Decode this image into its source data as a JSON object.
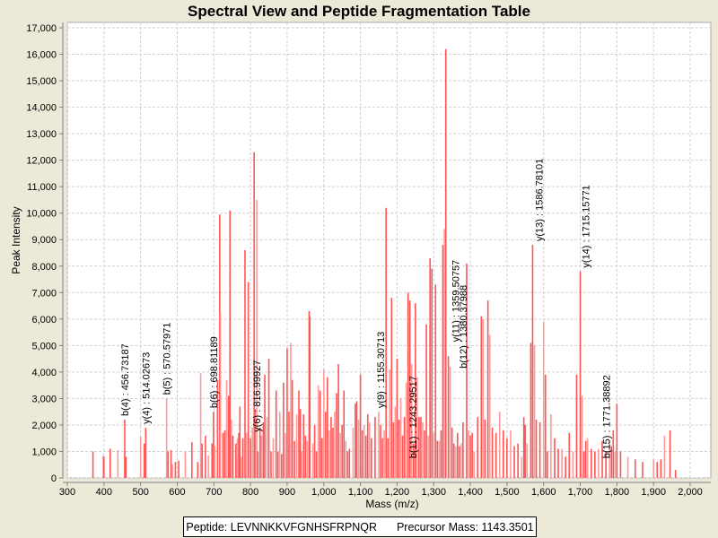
{
  "chart_data": {
    "type": "bar",
    "title": "Spectral View and Peptide Fragmentation Table",
    "xlabel": "Mass (m/z)",
    "ylabel": "Peak Intensity",
    "xlim": [
      290,
      2055
    ],
    "ylim": [
      0,
      17000
    ],
    "grid": true,
    "x_ticks": [
      "300",
      "400",
      "500",
      "600",
      "700",
      "800",
      "900",
      "1,000",
      "1,100",
      "1,200",
      "1,300",
      "1,400",
      "1,500",
      "1,600",
      "1,700",
      "1,800",
      "1,900",
      "2,000"
    ],
    "x_tick_values": [
      300,
      400,
      500,
      600,
      700,
      800,
      900,
      1000,
      1100,
      1200,
      1300,
      1400,
      1500,
      1600,
      1700,
      1800,
      1900,
      2000
    ],
    "y_ticks": [
      "0",
      "1,000",
      "2,000",
      "3,000",
      "4,000",
      "5,000",
      "6,000",
      "7,000",
      "8,000",
      "9,000",
      "10,000",
      "11,000",
      "12,000",
      "13,000",
      "14,000",
      "15,000",
      "16,000",
      "17,000"
    ],
    "y_tick_values": [
      0,
      1000,
      2000,
      3000,
      4000,
      5000,
      6000,
      7000,
      8000,
      9000,
      10000,
      11000,
      12000,
      13000,
      14000,
      15000,
      16000,
      17000
    ],
    "peak_color": "#ff5555",
    "peaks": [
      [
        370,
        1000
      ],
      [
        398,
        850
      ],
      [
        400,
        800
      ],
      [
        417,
        1100
      ],
      [
        438,
        1050
      ],
      [
        456.7,
        2200
      ],
      [
        460,
        800
      ],
      [
        500,
        1550
      ],
      [
        510,
        1300
      ],
      [
        514,
        1900
      ],
      [
        571,
        3000
      ],
      [
        575,
        1000
      ],
      [
        583,
        1050
      ],
      [
        587,
        500
      ],
      [
        595,
        600
      ],
      [
        604,
        650
      ],
      [
        622,
        1000
      ],
      [
        640,
        1350
      ],
      [
        656,
        600
      ],
      [
        664,
        3950
      ],
      [
        668,
        1300
      ],
      [
        677,
        1600
      ],
      [
        685,
        850
      ],
      [
        695,
        1300
      ],
      [
        699,
        2500
      ],
      [
        703,
        1200
      ],
      [
        710,
        3700
      ],
      [
        716,
        9950
      ],
      [
        718,
        6300
      ],
      [
        725,
        1700
      ],
      [
        730,
        1800
      ],
      [
        735,
        3700
      ],
      [
        740,
        3100
      ],
      [
        744,
        10100
      ],
      [
        748,
        2200
      ],
      [
        752,
        1600
      ],
      [
        760,
        1300
      ],
      [
        764,
        1500
      ],
      [
        768,
        1700
      ],
      [
        771,
        2700
      ],
      [
        775,
        800
      ],
      [
        779,
        1500
      ],
      [
        785,
        8600
      ],
      [
        789,
        1700
      ],
      [
        794,
        7400
      ],
      [
        800,
        1500
      ],
      [
        805,
        1900
      ],
      [
        810,
        12300
      ],
      [
        812,
        2600
      ],
      [
        817,
        10500
      ],
      [
        820,
        1000
      ],
      [
        826,
        1900
      ],
      [
        830,
        1600
      ],
      [
        835,
        2100
      ],
      [
        839,
        3900
      ],
      [
        845,
        2300
      ],
      [
        850,
        4500
      ],
      [
        856,
        1000
      ],
      [
        862,
        1500
      ],
      [
        870,
        3300
      ],
      [
        875,
        1000
      ],
      [
        880,
        2500
      ],
      [
        885,
        900
      ],
      [
        890,
        3600
      ],
      [
        895,
        1700
      ],
      [
        900,
        4900
      ],
      [
        905,
        2500
      ],
      [
        910,
        5100
      ],
      [
        914,
        3700
      ],
      [
        920,
        1400
      ],
      [
        926,
        2400
      ],
      [
        932,
        3300
      ],
      [
        936,
        2600
      ],
      [
        940,
        1000
      ],
      [
        945,
        2400
      ],
      [
        950,
        1600
      ],
      [
        955,
        1400
      ],
      [
        960,
        6300
      ],
      [
        962,
        6100
      ],
      [
        970,
        1300
      ],
      [
        975,
        2000
      ],
      [
        980,
        1000
      ],
      [
        985,
        3500
      ],
      [
        990,
        3300
      ],
      [
        995,
        1500
      ],
      [
        1000,
        4100
      ],
      [
        1005,
        2500
      ],
      [
        1010,
        3800
      ],
      [
        1015,
        1800
      ],
      [
        1020,
        2300
      ],
      [
        1025,
        1900
      ],
      [
        1030,
        2500
      ],
      [
        1035,
        3200
      ],
      [
        1040,
        4300
      ],
      [
        1045,
        1700
      ],
      [
        1050,
        2000
      ],
      [
        1055,
        3300
      ],
      [
        1060,
        1400
      ],
      [
        1065,
        1000
      ],
      [
        1070,
        1100
      ],
      [
        1080,
        1900
      ],
      [
        1086,
        2800
      ],
      [
        1090,
        2900
      ],
      [
        1095,
        2200
      ],
      [
        1100,
        3900
      ],
      [
        1105,
        1800
      ],
      [
        1110,
        2000
      ],
      [
        1115,
        1600
      ],
      [
        1120,
        2400
      ],
      [
        1125,
        2100
      ],
      [
        1130,
        1500
      ],
      [
        1140,
        2300
      ],
      [
        1150,
        2500
      ],
      [
        1155,
        2000
      ],
      [
        1160,
        1500
      ],
      [
        1165,
        1800
      ],
      [
        1170,
        10200
      ],
      [
        1175,
        1500
      ],
      [
        1180,
        4100
      ],
      [
        1185,
        6800
      ],
      [
        1190,
        2100
      ],
      [
        1195,
        2700
      ],
      [
        1200,
        4500
      ],
      [
        1205,
        2200
      ],
      [
        1210,
        3000
      ],
      [
        1215,
        1600
      ],
      [
        1220,
        2300
      ],
      [
        1225,
        3600
      ],
      [
        1230,
        7000
      ],
      [
        1235,
        6700
      ],
      [
        1240,
        4300
      ],
      [
        1245,
        1300
      ],
      [
        1250,
        6600
      ],
      [
        1255,
        3800
      ],
      [
        1260,
        2300
      ],
      [
        1265,
        2300
      ],
      [
        1270,
        2100
      ],
      [
        1275,
        1800
      ],
      [
        1280,
        5800
      ],
      [
        1285,
        1600
      ],
      [
        1290,
        8300
      ],
      [
        1295,
        7900
      ],
      [
        1300,
        1700
      ],
      [
        1305,
        7300
      ],
      [
        1310,
        1400
      ],
      [
        1315,
        1400
      ],
      [
        1320,
        1800
      ],
      [
        1325,
        8800
      ],
      [
        1329,
        9400
      ],
      [
        1333,
        16200
      ],
      [
        1340,
        4600
      ],
      [
        1345,
        4200
      ],
      [
        1350,
        1900
      ],
      [
        1355,
        1300
      ],
      [
        1360,
        1200
      ],
      [
        1365,
        1700
      ],
      [
        1370,
        1200
      ],
      [
        1375,
        1300
      ],
      [
        1380,
        2100
      ],
      [
        1390,
        8100
      ],
      [
        1395,
        1800
      ],
      [
        1400,
        1600
      ],
      [
        1405,
        1700
      ],
      [
        1410,
        1000
      ],
      [
        1420,
        2300
      ],
      [
        1430,
        6100
      ],
      [
        1435,
        6000
      ],
      [
        1440,
        2200
      ],
      [
        1448,
        6700
      ],
      [
        1453,
        5400
      ],
      [
        1460,
        1900
      ],
      [
        1470,
        1700
      ],
      [
        1480,
        2500
      ],
      [
        1490,
        1800
      ],
      [
        1500,
        1500
      ],
      [
        1510,
        1800
      ],
      [
        1520,
        1200
      ],
      [
        1530,
        1300
      ],
      [
        1540,
        800
      ],
      [
        1546,
        2300
      ],
      [
        1550,
        2000
      ],
      [
        1555,
        1300
      ],
      [
        1565,
        5100
      ],
      [
        1570,
        8800
      ],
      [
        1575,
        5000
      ],
      [
        1580,
        2200
      ],
      [
        1590,
        2100
      ],
      [
        1600,
        5900
      ],
      [
        1605,
        3900
      ],
      [
        1610,
        1000
      ],
      [
        1620,
        2400
      ],
      [
        1630,
        1500
      ],
      [
        1640,
        1100
      ],
      [
        1650,
        1100
      ],
      [
        1660,
        800
      ],
      [
        1670,
        1700
      ],
      [
        1680,
        1000
      ],
      [
        1690,
        3900
      ],
      [
        1700,
        7800
      ],
      [
        1705,
        3100
      ],
      [
        1710,
        1000
      ],
      [
        1715,
        1400
      ],
      [
        1720,
        1500
      ],
      [
        1730,
        1100
      ],
      [
        1740,
        1000
      ],
      [
        1750,
        1100
      ],
      [
        1760,
        1400
      ],
      [
        1770,
        1000
      ],
      [
        1780,
        1400
      ],
      [
        1785,
        1200
      ],
      [
        1790,
        1800
      ],
      [
        1795,
        1000
      ],
      [
        1800,
        2800
      ],
      [
        1810,
        1000
      ],
      [
        1830,
        800
      ],
      [
        1850,
        700
      ],
      [
        1870,
        600
      ],
      [
        1900,
        700
      ],
      [
        1910,
        600
      ],
      [
        1920,
        700
      ],
      [
        1930,
        1600
      ],
      [
        1945,
        1800
      ],
      [
        1960,
        300
      ]
    ],
    "annotations": [
      {
        "label": "b(4) : 456.73187",
        "mz": 456.73187,
        "intensity": 2200
      },
      {
        "label": "y(4) : 514.02673",
        "mz": 514.02673,
        "intensity": 1900
      },
      {
        "label": "b(5) : 570.57971",
        "mz": 570.57971,
        "intensity": 3000
      },
      {
        "label": "b(6) : 698.81189",
        "mz": 698.81189,
        "intensity": 2500
      },
      {
        "label": "y(6) : 816.99927",
        "mz": 816.99927,
        "intensity": 1600
      },
      {
        "label": "y(9) : 1155.30713",
        "mz": 1155.30713,
        "intensity": 2500
      },
      {
        "label": "b(11) : 1243.29517",
        "mz": 1243.29517,
        "intensity": 600
      },
      {
        "label": "y(11) : 1359.50757",
        "mz": 1359.50757,
        "intensity": 5000
      },
      {
        "label": "b(12) : 1380.37988",
        "mz": 1380.37988,
        "intensity": 4000
      },
      {
        "label": "y(13) : 1586.78101",
        "mz": 1586.78101,
        "intensity": 8800
      },
      {
        "label": "y(14) : 1715.15771",
        "mz": 1715.15771,
        "intensity": 7800
      },
      {
        "label": "b(15) : 1771.38892",
        "mz": 1771.38892,
        "intensity": 600
      }
    ]
  },
  "legend": {
    "peptide": "Peptide: LEVNNKKVFGNHSFRPNQR",
    "precursor": "Precursor Mass: 1143.3501"
  }
}
